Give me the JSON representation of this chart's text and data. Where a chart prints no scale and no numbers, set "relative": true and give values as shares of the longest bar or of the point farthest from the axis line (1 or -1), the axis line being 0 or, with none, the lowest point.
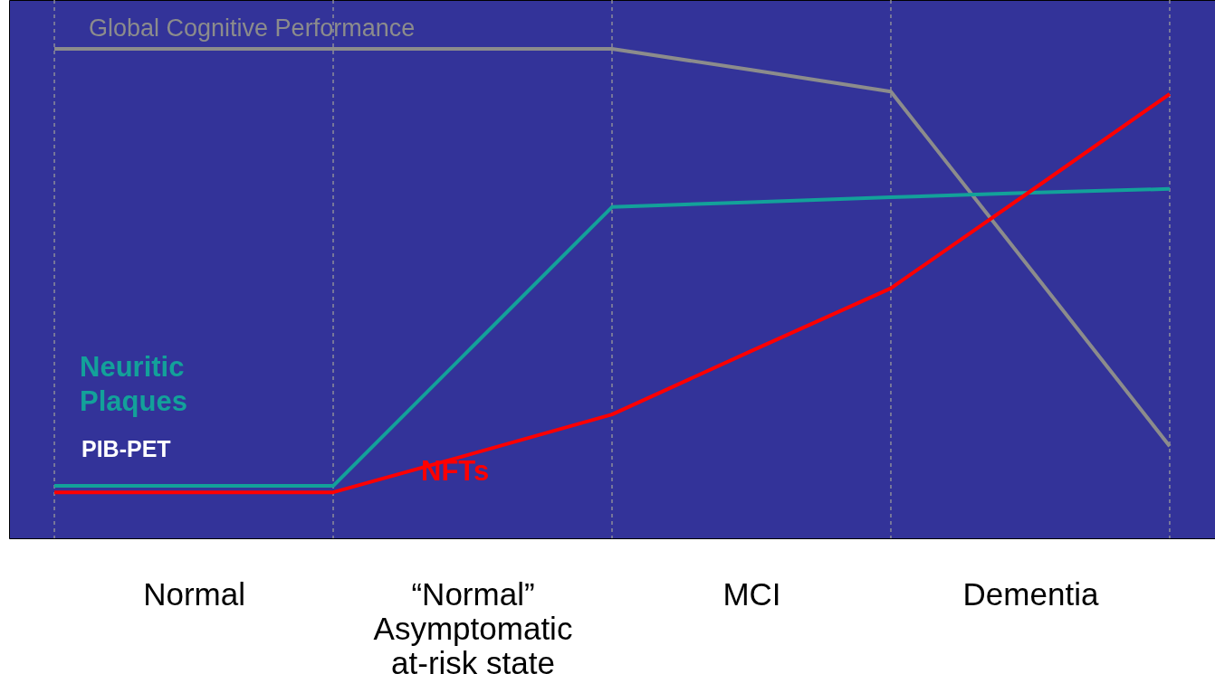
{
  "chart_data": {
    "type": "line",
    "relative": true,
    "grid": "x",
    "legend": false,
    "categories": [
      null,
      "Normal",
      null,
      "“Normal” Asymptomatic at-risk state",
      null,
      "MCI",
      null,
      "Dementia",
      null
    ],
    "series": [
      {
        "name": "Global Cognitive Performance",
        "color": "#8c8c8c",
        "values": [
          1,
          1,
          1,
          1,
          1,
          0.957,
          0.913,
          0.551,
          0.188
        ]
      },
      {
        "name": "Neuritic Plaques",
        "color": "#13a19a",
        "values": [
          0.107,
          0.107,
          0.107,
          0.392,
          0.677,
          0.687,
          0.697,
          0.706,
          0.714
        ]
      },
      {
        "name": "NFTs",
        "color": "#ff0000",
        "values": [
          0.094,
          0.094,
          0.094,
          0.173,
          0.253,
          0.383,
          0.511,
          0.709,
          0.908
        ]
      }
    ],
    "annotations": [
      "PIB-PET"
    ]
  }
}
